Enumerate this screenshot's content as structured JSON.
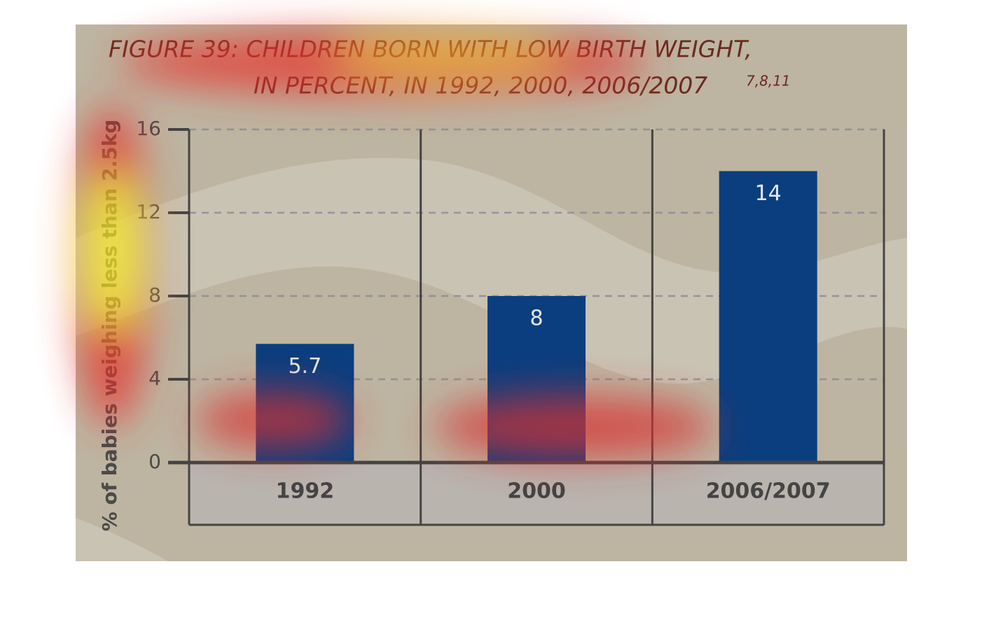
{
  "chart_data": {
    "type": "bar",
    "title": [
      "FIGURE 39: CHILDREN BORN WITH LOW BIRTH WEIGHT,",
      "IN PERCENT, IN 1992, 2000, 2006/2007"
    ],
    "title_sources": "7,8,11",
    "ylabel": "% of babies weighing less than 2.5kg",
    "categories": [
      "1992",
      "2000",
      "2006/2007"
    ],
    "values": [
      5.7,
      8,
      14
    ],
    "color": "#0b3e7f",
    "ylim": [
      0,
      16
    ],
    "yticks": [
      0,
      4,
      8,
      12,
      16
    ],
    "grid": true
  }
}
